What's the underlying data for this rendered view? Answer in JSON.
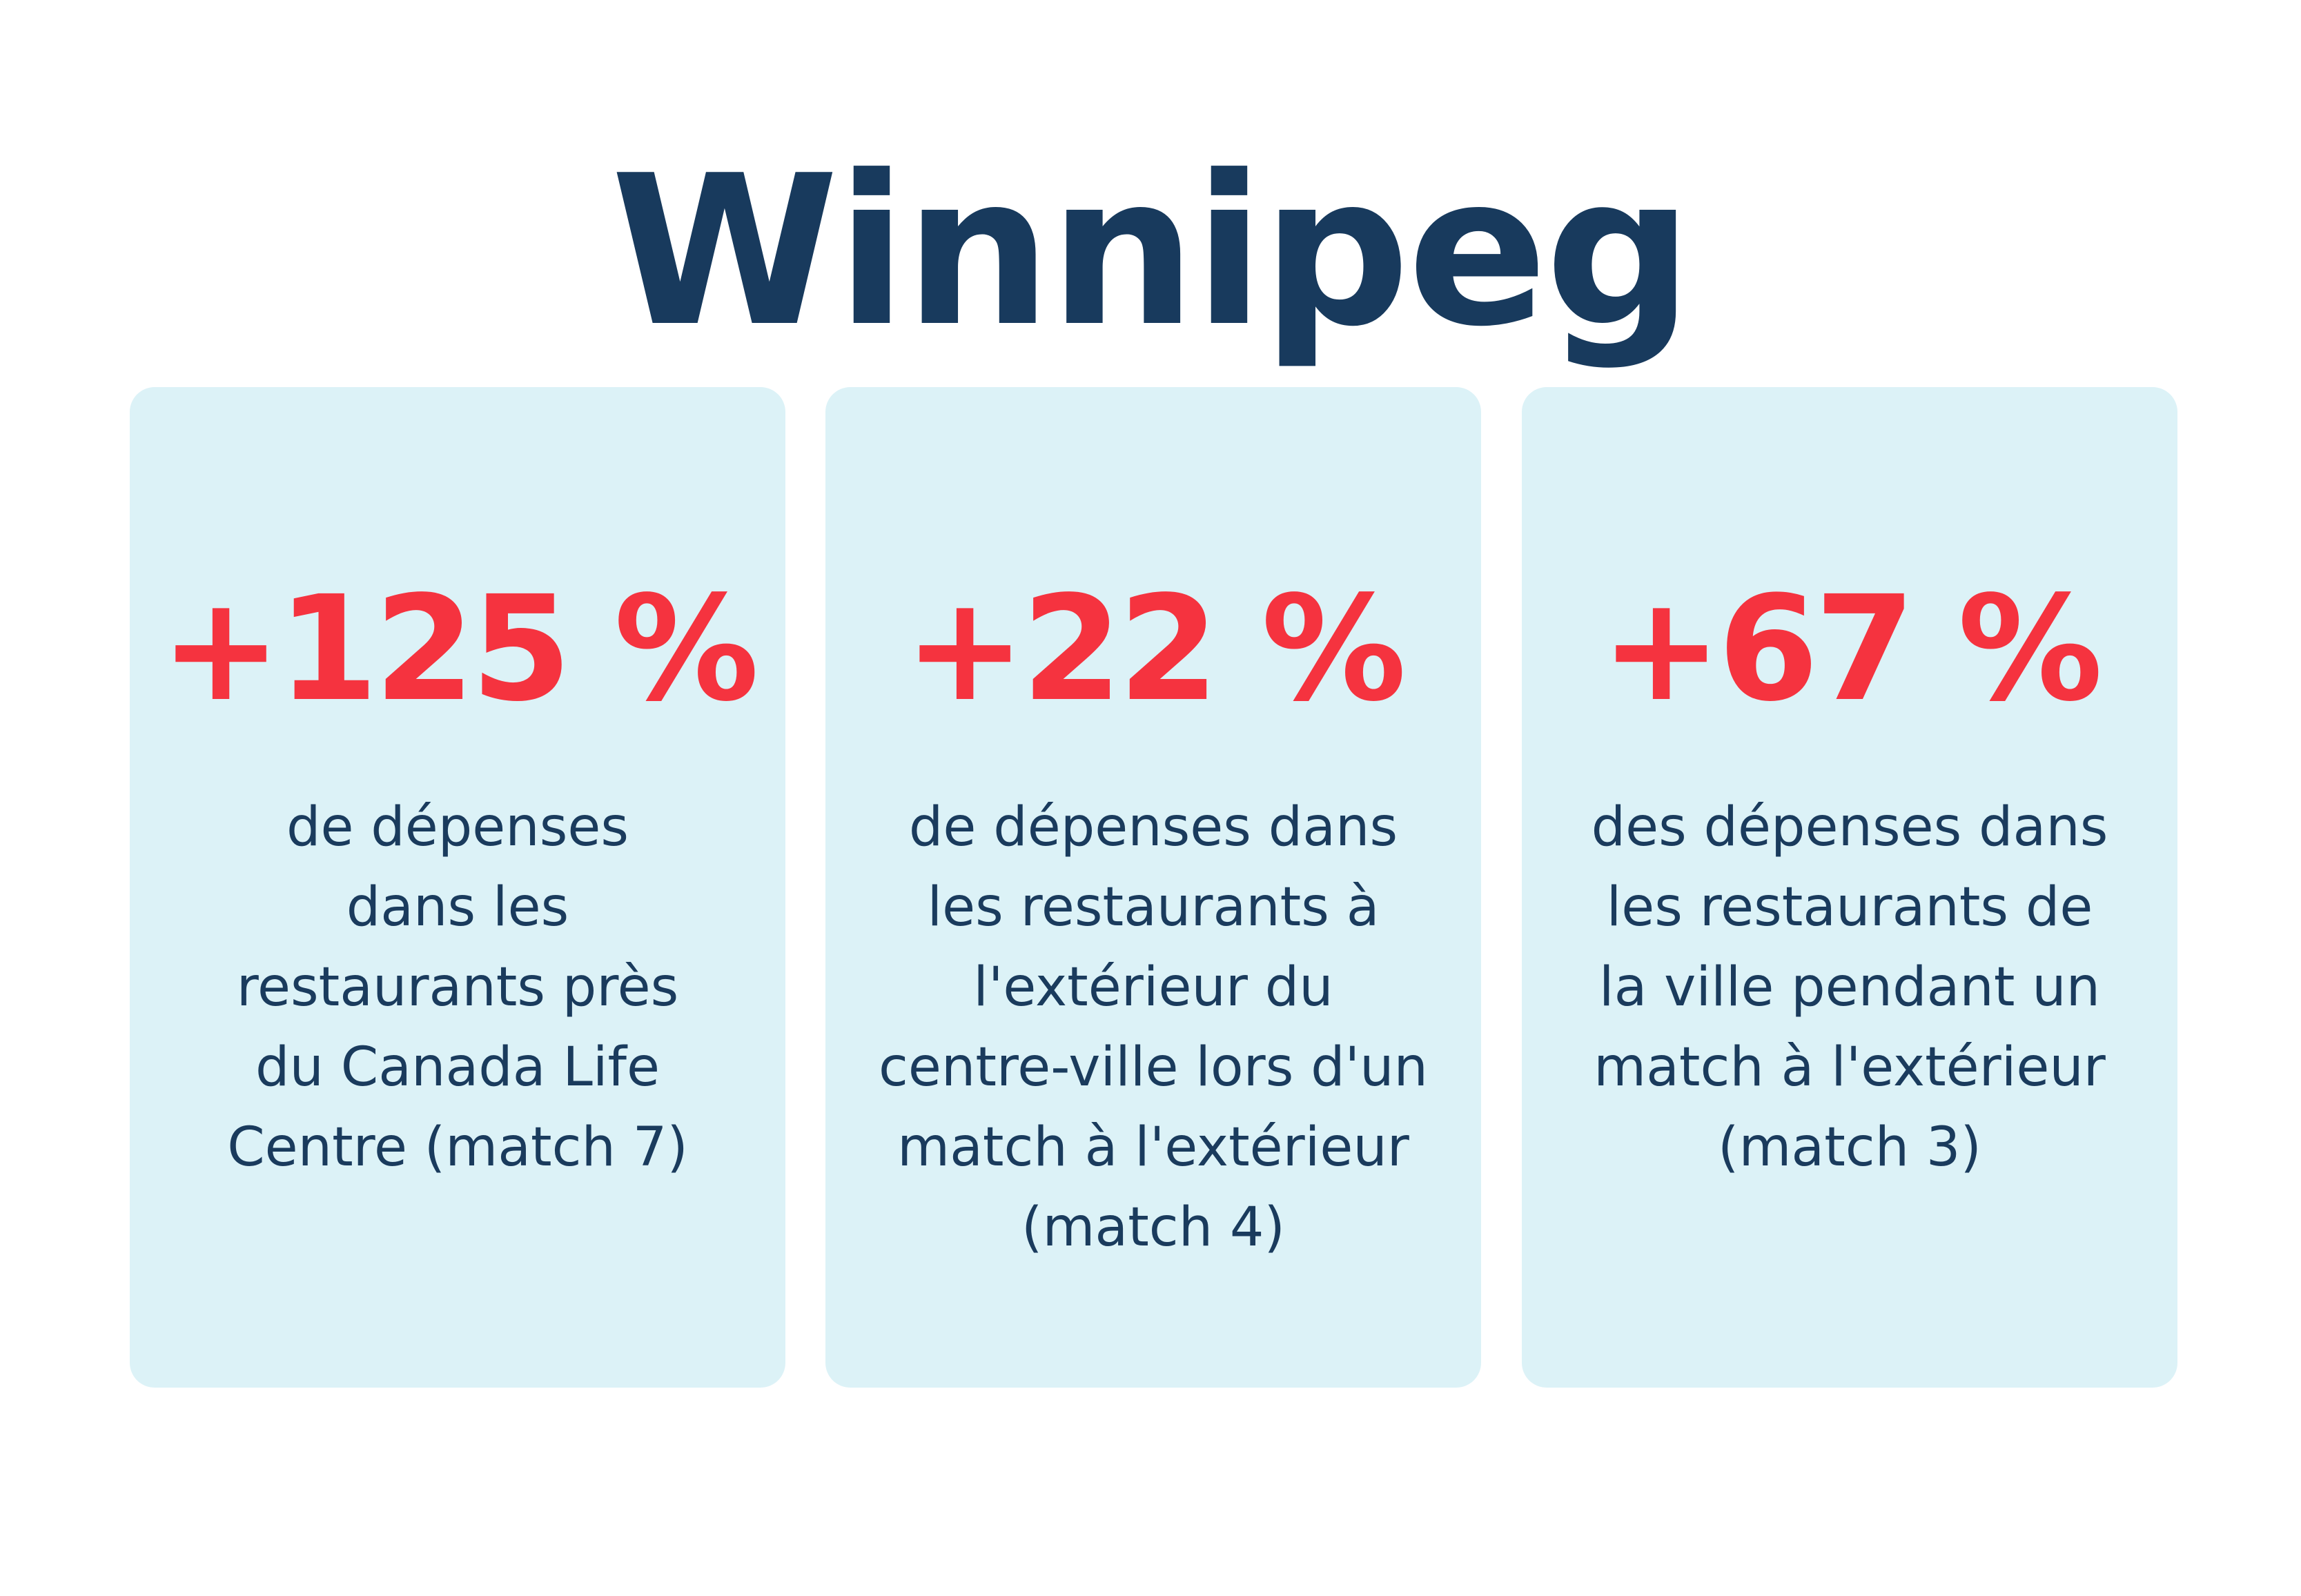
{
  "title": "Winnipeg",
  "colors": {
    "title": "#183a5d",
    "accent": "#f5333f",
    "card_background": "#dcf2f7",
    "body_text": "#1a3b5d"
  },
  "cards": [
    {
      "value": "+125 %",
      "lines": [
        "de dépenses",
        "dans les",
        "restaurants près",
        "du Canada Life",
        "Centre (match 7)"
      ]
    },
    {
      "value": "+22 %",
      "lines": [
        "de dépenses dans",
        "les restaurants à",
        "l'extérieur du",
        "centre-ville lors d'un",
        "match à l'extérieur",
        "(match 4)"
      ]
    },
    {
      "value": "+67 %",
      "lines": [
        "des dépenses dans",
        "les restaurants de",
        "la ville pendant un",
        "match à l'extérieur",
        "(match 3)"
      ]
    }
  ]
}
